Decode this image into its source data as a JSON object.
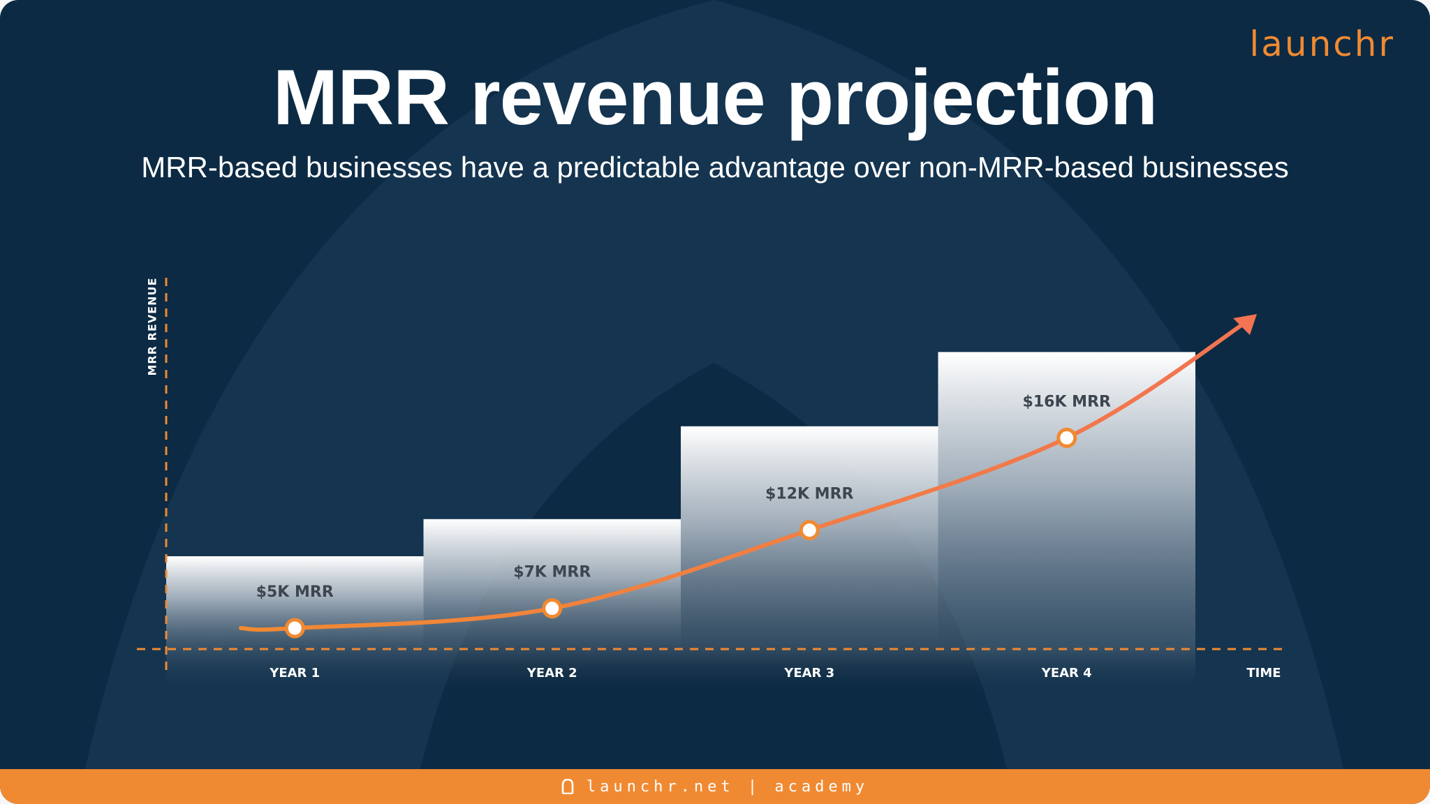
{
  "header": {
    "title": "MRR revenue projection",
    "subtitle": "MRR-based businesses have a predictable advantage over non-MRR-based businesses",
    "logo_text": "launchr"
  },
  "footer": {
    "text": "launchr.net | academy"
  },
  "colors": {
    "background": "#0c2a43",
    "accent": "#f08a32",
    "curve_end": "#f37352"
  },
  "chart_data": {
    "type": "bar",
    "title": "MRR revenue projection",
    "subtitle": "MRR-based businesses have a predictable advantage over non-MRR-based businesses",
    "categories": [
      "YEAR 1",
      "YEAR 2",
      "YEAR 3",
      "YEAR 4"
    ],
    "values": [
      5,
      7,
      12,
      16
    ],
    "data_labels": [
      "$5K MRR",
      "$7K MRR",
      "$12K MRR",
      "$16K MRR"
    ],
    "xlabel": "TIME",
    "ylabel": "MRR REVENUE",
    "ylim": [
      0,
      20
    ],
    "grid": false,
    "trend_line": {
      "type": "line",
      "values": [
        5,
        7,
        12,
        16
      ]
    }
  }
}
